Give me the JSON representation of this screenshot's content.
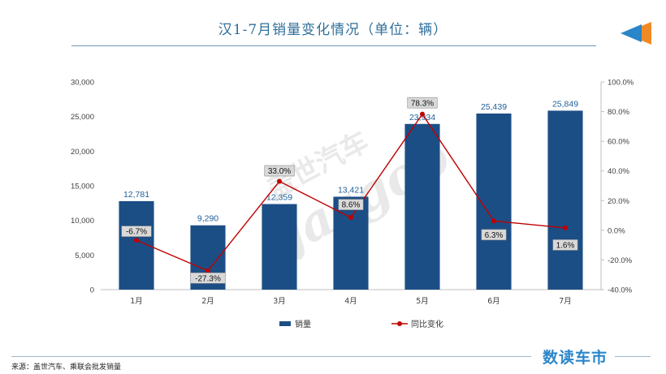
{
  "header": {
    "title": "汉1-7月销量变化情况（单位：辆）"
  },
  "footer": {
    "source": "来源：盖世汽车、乘联会批发销量",
    "brand": "数读车市"
  },
  "watermark": {
    "cn": "盖世汽车",
    "en": "gasgoo"
  },
  "colors": {
    "bar": "#1c4e86",
    "line": "#c00000",
    "title": "#2f6f9a",
    "brand": "#2a86c8"
  },
  "chart_data": {
    "type": "bar",
    "categories": [
      "1月",
      "2月",
      "3月",
      "4月",
      "5月",
      "6月",
      "7月"
    ],
    "series": [
      {
        "name": "销量",
        "type": "bar",
        "axis": "left",
        "values": [
          12781,
          9290,
          12359,
          13421,
          23934,
          25439,
          25849
        ],
        "labels": [
          "12,781",
          "9,290",
          "12,359",
          "13,421",
          "23,934",
          "25,439",
          "25,849"
        ]
      },
      {
        "name": "同比变化",
        "type": "line",
        "axis": "right",
        "values": [
          -6.7,
          -27.3,
          33.0,
          8.6,
          78.3,
          6.3,
          1.6
        ],
        "labels": [
          "-6.7%",
          "-27.3%",
          "33.0%",
          "8.6%",
          "78.3%",
          "6.3%",
          "1.6%"
        ]
      }
    ],
    "y_left": {
      "min": 0,
      "max": 30000,
      "ticks": [
        "0",
        "5,000",
        "10,000",
        "15,000",
        "20,000",
        "25,000",
        "30,000"
      ]
    },
    "y_right": {
      "min": -40,
      "max": 100,
      "ticks": [
        "-40.0%",
        "-20.0%",
        "0.0%",
        "20.0%",
        "40.0%",
        "60.0%",
        "80.0%",
        "100.0%"
      ]
    },
    "legend_position": "bottom",
    "grid": false
  }
}
